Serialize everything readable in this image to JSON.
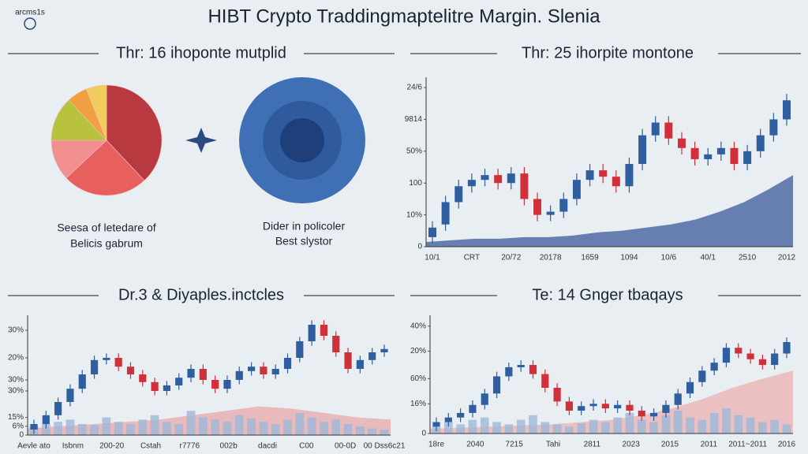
{
  "header": {
    "logo": "arcms1s",
    "title": "HIBT Crypto Traddingmaptelitre Margin. Slenia"
  },
  "chart_data": [
    {
      "type": "pie",
      "title": "Thr: 16 ihoponte mutplid",
      "values": [
        38,
        25,
        12,
        13,
        6,
        6
      ],
      "colors": [
        "#b83a40",
        "#e8605e",
        "#f29090",
        "#b9c23c",
        "#f0a040",
        "#f3cc5e"
      ],
      "annotations": [
        "Seesa of letedare of",
        "Belicis gabrum",
        "Dider in policoler",
        "Best slystor"
      ]
    },
    {
      "type": "candlestick",
      "title": "Thr: 25 ihorpite montone",
      "ylim": [
        0,
        104
      ],
      "yticks": [
        0,
        {
          "value": 20,
          "label": "10%"
        },
        {
          "value": 40,
          "label": "100"
        },
        {
          "value": 60,
          "label": "50%"
        },
        {
          "value": 80,
          "label": "9814"
        },
        {
          "value": 100,
          "label": "24/6"
        }
      ],
      "x_labels": [
        "10/1",
        "CRT",
        "20/72",
        "20178",
        "1659",
        "1094",
        "10/6",
        "40/1",
        "2510",
        "2012"
      ],
      "open": [
        6,
        14,
        28,
        38,
        42,
        45,
        40,
        46,
        30,
        20,
        22,
        30,
        42,
        48,
        44,
        38,
        52,
        70,
        78,
        68,
        62,
        55,
        58,
        62,
        52,
        60,
        70,
        80
      ],
      "high": [
        16,
        32,
        42,
        46,
        49,
        49,
        50,
        50,
        34,
        26,
        34,
        46,
        52,
        52,
        48,
        56,
        74,
        82,
        82,
        72,
        66,
        62,
        66,
        66,
        64,
        74,
        84,
        96
      ],
      "low": [
        2,
        10,
        24,
        34,
        38,
        36,
        36,
        26,
        16,
        16,
        18,
        26,
        38,
        40,
        34,
        34,
        48,
        66,
        64,
        58,
        51,
        51,
        54,
        48,
        48,
        56,
        66,
        76
      ],
      "close": [
        12,
        28,
        38,
        42,
        45,
        40,
        46,
        30,
        20,
        22,
        30,
        42,
        48,
        44,
        38,
        52,
        70,
        78,
        68,
        62,
        55,
        58,
        62,
        52,
        60,
        70,
        80,
        92
      ],
      "up_color": "#2f5f9f",
      "down_color": "#d0303a",
      "area": {
        "color": "#3a5a9a",
        "values": [
          3,
          4,
          5,
          5,
          6,
          6,
          7,
          9,
          10,
          12,
          14,
          17,
          22,
          28,
          36,
          45
        ]
      }
    },
    {
      "type": "candlestick",
      "title": "Dr.3 & Diyaples.inctcles",
      "ylim": [
        0,
        105
      ],
      "yticks": [
        0,
        {
          "value": 8,
          "label": "6%"
        },
        {
          "value": 16,
          "label": "15%"
        },
        {
          "value": 40,
          "label": "30%"
        },
        {
          "value": 50,
          "label": "30%"
        },
        {
          "value": 70,
          "label": "20%"
        },
        {
          "value": 95,
          "label": "30%"
        }
      ],
      "x_labels": [
        "Aevle ato",
        "Isbnm",
        "200-20",
        "Cstah",
        "r7776",
        "002b",
        "dacdi",
        "C00",
        "00-0D",
        "00 Dss6c21"
      ],
      "open": [
        5,
        10,
        18,
        30,
        42,
        55,
        68,
        70,
        62,
        55,
        48,
        40,
        45,
        52,
        60,
        50,
        42,
        50,
        58,
        62,
        55,
        60,
        70,
        85,
        100,
        90,
        75,
        60,
        68,
        75
      ],
      "high": [
        14,
        22,
        34,
        46,
        59,
        72,
        74,
        74,
        66,
        59,
        52,
        49,
        56,
        64,
        64,
        54,
        54,
        62,
        66,
        66,
        64,
        74,
        89,
        104,
        104,
        94,
        79,
        72,
        79,
        82
      ],
      "low": [
        1,
        6,
        14,
        26,
        38,
        51,
        64,
        58,
        51,
        44,
        36,
        36,
        41,
        48,
        46,
        38,
        38,
        46,
        54,
        51,
        51,
        56,
        66,
        81,
        86,
        71,
        56,
        56,
        64,
        71
      ],
      "close": [
        10,
        18,
        30,
        42,
        55,
        68,
        70,
        62,
        55,
        48,
        40,
        45,
        52,
        60,
        50,
        42,
        50,
        58,
        62,
        55,
        60,
        70,
        85,
        100,
        90,
        75,
        60,
        68,
        75,
        78
      ],
      "up_color": "#2f5f9f",
      "down_color": "#d0303a",
      "area": {
        "color": "#e8a8a8",
        "values": [
          6,
          8,
          10,
          12,
          14,
          18,
          22,
          26,
          24,
          20,
          16,
          14
        ]
      },
      "volume": {
        "color": "#9db8d8",
        "values": [
          8,
          10,
          12,
          14,
          10,
          9,
          16,
          12,
          10,
          14,
          18,
          12,
          10,
          22,
          16,
          14,
          12,
          18,
          15,
          12,
          10,
          14,
          20,
          16,
          12,
          14,
          10,
          8,
          6,
          5
        ]
      }
    },
    {
      "type": "candlestick",
      "title": "Te: 14 Gnger tbaqays",
      "ylim": [
        0,
        100
      ],
      "yticks": [
        0,
        {
          "value": 26,
          "label": "16%"
        },
        {
          "value": 48,
          "label": "60%"
        },
        {
          "value": 72,
          "label": "20%"
        },
        {
          "value": 94,
          "label": "40%"
        }
      ],
      "x_labels": [
        "18re",
        "2040",
        "7215",
        "Tahi",
        "2811",
        "2023",
        "2015",
        "2011",
        "2011~2011",
        "2016"
      ],
      "open": [
        6,
        10,
        14,
        18,
        25,
        35,
        50,
        58,
        60,
        52,
        40,
        28,
        20,
        24,
        26,
        22,
        25,
        20,
        15,
        18,
        25,
        35,
        45,
        55,
        62,
        75,
        70,
        65,
        60,
        70
      ],
      "high": [
        14,
        18,
        22,
        29,
        39,
        54,
        62,
        64,
        64,
        56,
        44,
        32,
        28,
        30,
        30,
        29,
        29,
        24,
        22,
        29,
        39,
        49,
        59,
        66,
        79,
        79,
        74,
        69,
        74,
        84
      ],
      "low": [
        2,
        6,
        10,
        14,
        21,
        31,
        46,
        54,
        48,
        36,
        24,
        16,
        16,
        20,
        18,
        18,
        16,
        11,
        11,
        14,
        21,
        31,
        41,
        51,
        58,
        66,
        61,
        56,
        56,
        66
      ],
      "close": [
        10,
        14,
        18,
        25,
        35,
        50,
        58,
        60,
        52,
        40,
        28,
        20,
        24,
        26,
        22,
        25,
        20,
        15,
        18,
        25,
        35,
        45,
        55,
        62,
        75,
        70,
        65,
        60,
        70,
        80
      ],
      "up_color": "#2f5f9f",
      "down_color": "#d0303a",
      "area": {
        "color": "#eab0b0",
        "values": [
          4,
          5,
          6,
          7,
          8,
          10,
          12,
          16,
          22,
          30,
          40,
          48,
          55
        ]
      },
      "volume": {
        "color": "#9db8d8",
        "values": [
          6,
          10,
          8,
          12,
          14,
          10,
          8,
          12,
          16,
          10,
          8,
          6,
          9,
          12,
          10,
          14,
          18,
          12,
          10,
          16,
          20,
          14,
          12,
          18,
          22,
          16,
          14,
          10,
          12,
          8
        ]
      }
    }
  ]
}
